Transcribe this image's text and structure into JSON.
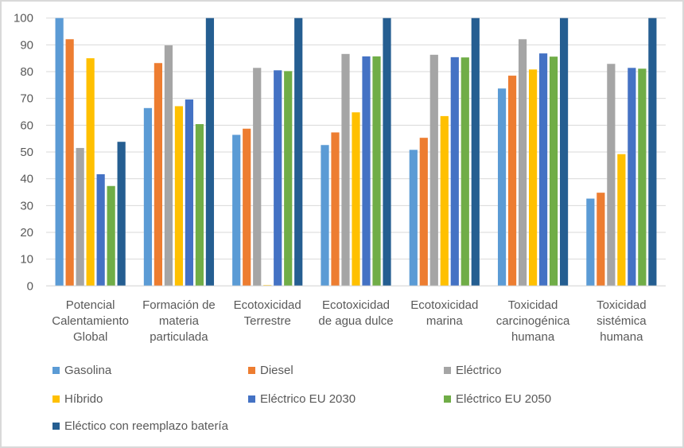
{
  "chart_data": {
    "type": "bar",
    "title": "",
    "xlabel": "",
    "ylabel": "",
    "ylim": [
      0,
      100
    ],
    "yticks": [
      0,
      10,
      20,
      30,
      40,
      50,
      60,
      70,
      80,
      90,
      100
    ],
    "grid": true,
    "legend_position": "bottom",
    "categories": [
      [
        "Potencial",
        "Calentamiento",
        "Global"
      ],
      [
        "Formación de",
        "materia",
        "particulada"
      ],
      [
        "Ecotoxicidad",
        "Terrestre"
      ],
      [
        "Ecotoxicidad",
        "de agua dulce"
      ],
      [
        "Ecotoxicidad",
        "marina"
      ],
      [
        "Toxicidad",
        "carcinogénica",
        "humana"
      ],
      [
        "Toxicidad",
        "sistémica",
        "humana"
      ]
    ],
    "series": [
      {
        "name": "Gasolina",
        "color": "#5b9bd5",
        "values": [
          100,
          66.4,
          56.4,
          52.6,
          50.8,
          73.7,
          32.6
        ]
      },
      {
        "name": "Diesel",
        "color": "#ed7d31",
        "values": [
          92.1,
          83.2,
          58.7,
          57.3,
          55.3,
          78.5,
          34.8
        ]
      },
      {
        "name": "Eléctrico",
        "color": "#a5a5a5",
        "values": [
          51.5,
          89.8,
          81.4,
          86.6,
          86.3,
          92.1,
          82.9
        ]
      },
      {
        "name": "Híbrido",
        "color": "#ffc000",
        "values": [
          85.0,
          67.1,
          0.3,
          64.8,
          63.4,
          80.8,
          49.2
        ]
      },
      {
        "name": "Eléctrico EU 2030",
        "color": "#4472c4",
        "values": [
          41.7,
          69.6,
          80.5,
          85.7,
          85.4,
          86.8,
          81.4
        ]
      },
      {
        "name": "Eléctrico EU 2050",
        "color": "#70ad47",
        "values": [
          37.3,
          60.4,
          80.2,
          85.7,
          85.3,
          85.6,
          81.1
        ]
      },
      {
        "name": "Eléctico con reemplazo batería",
        "color": "#255e91",
        "values": [
          53.8,
          100,
          100,
          100,
          100,
          100,
          100
        ]
      }
    ]
  }
}
